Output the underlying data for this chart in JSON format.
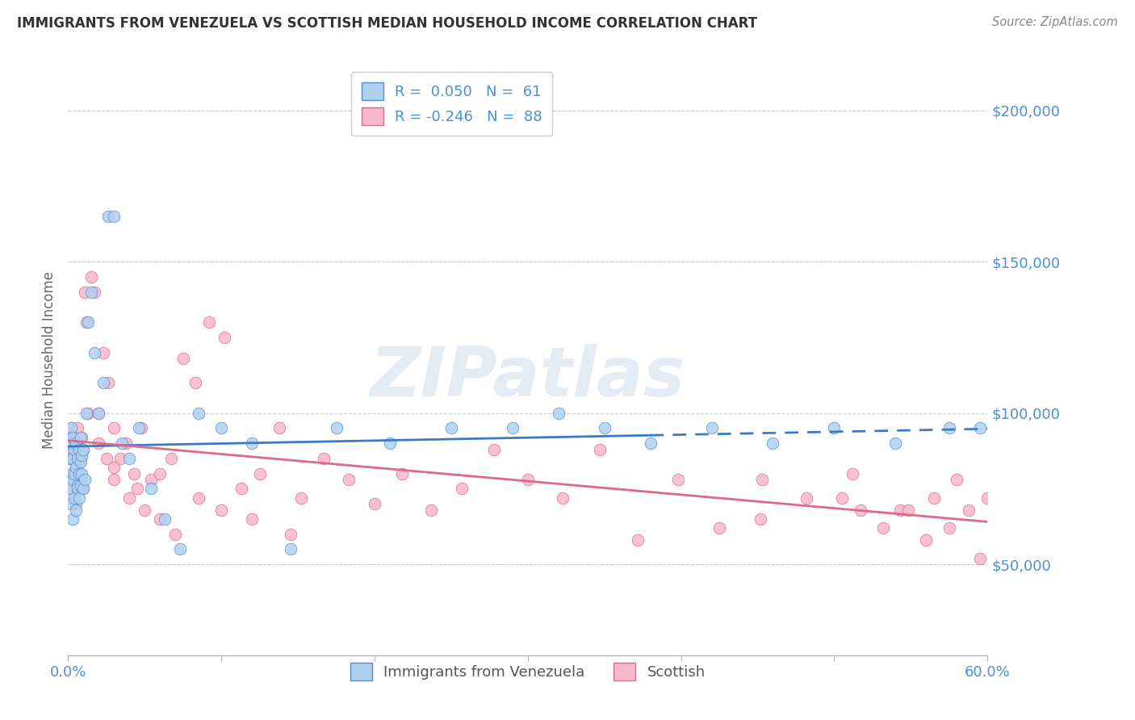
{
  "title": "IMMIGRANTS FROM VENEZUELA VS SCOTTISH MEDIAN HOUSEHOLD INCOME CORRELATION CHART",
  "source": "Source: ZipAtlas.com",
  "ylabel": "Median Household Income",
  "xlim": [
    0.0,
    0.6
  ],
  "ylim": [
    20000,
    215000
  ],
  "yticks": [
    50000,
    100000,
    150000,
    200000
  ],
  "ytick_labels": [
    "$50,000",
    "$100,000",
    "$150,000",
    "$200,000"
  ],
  "xtick_major": [
    0.0,
    0.6
  ],
  "xtick_major_labels": [
    "0.0%",
    "60.0%"
  ],
  "xtick_minor": [
    0.1,
    0.2,
    0.3,
    0.4,
    0.5
  ],
  "series1_label": "Immigrants from Venezuela",
  "series1_R": 0.05,
  "series1_N": 61,
  "series1_color": "#b0d0f0",
  "series1_edge_color": "#5090d0",
  "series1_line_color": "#3a7bc8",
  "series2_label": "Scottish",
  "series2_R": -0.246,
  "series2_N": 88,
  "series2_color": "#f8b8cc",
  "series2_edge_color": "#e06888",
  "series2_line_color": "#e06888",
  "watermark": "ZIPatlas",
  "bg_color": "#ffffff",
  "grid_color": "#cccccc",
  "title_color": "#333333",
  "ylabel_color": "#666666",
  "tick_color": "#4a90d9",
  "source_color": "#888888",
  "dot_size": 110,
  "line_dash_start": 0.38,
  "series1_x": [
    0.001,
    0.001,
    0.001,
    0.002,
    0.002,
    0.002,
    0.003,
    0.003,
    0.003,
    0.003,
    0.004,
    0.004,
    0.004,
    0.005,
    0.005,
    0.005,
    0.006,
    0.006,
    0.006,
    0.007,
    0.007,
    0.007,
    0.008,
    0.008,
    0.008,
    0.009,
    0.009,
    0.01,
    0.01,
    0.011,
    0.012,
    0.013,
    0.015,
    0.017,
    0.02,
    0.023,
    0.026,
    0.03,
    0.035,
    0.04,
    0.046,
    0.054,
    0.063,
    0.073,
    0.085,
    0.1,
    0.12,
    0.145,
    0.175,
    0.21,
    0.25,
    0.29,
    0.32,
    0.35,
    0.38,
    0.42,
    0.46,
    0.5,
    0.54,
    0.575,
    0.595
  ],
  "series1_y": [
    85000,
    90000,
    75000,
    80000,
    95000,
    70000,
    85000,
    78000,
    92000,
    65000,
    88000,
    72000,
    80000,
    90000,
    68000,
    82000,
    76000,
    85000,
    75000,
    80000,
    88000,
    72000,
    84000,
    76000,
    92000,
    80000,
    86000,
    75000,
    88000,
    78000,
    100000,
    130000,
    140000,
    120000,
    100000,
    110000,
    165000,
    165000,
    90000,
    85000,
    95000,
    75000,
    65000,
    55000,
    100000,
    95000,
    90000,
    55000,
    95000,
    90000,
    95000,
    95000,
    100000,
    95000,
    90000,
    95000,
    90000,
    95000,
    90000,
    95000,
    95000
  ],
  "series2_x": [
    0.001,
    0.001,
    0.002,
    0.002,
    0.002,
    0.003,
    0.003,
    0.004,
    0.004,
    0.005,
    0.005,
    0.005,
    0.006,
    0.006,
    0.006,
    0.007,
    0.007,
    0.008,
    0.008,
    0.009,
    0.01,
    0.01,
    0.011,
    0.012,
    0.013,
    0.015,
    0.017,
    0.02,
    0.023,
    0.026,
    0.03,
    0.034,
    0.038,
    0.043,
    0.048,
    0.054,
    0.06,
    0.067,
    0.075,
    0.083,
    0.092,
    0.102,
    0.113,
    0.125,
    0.138,
    0.152,
    0.167,
    0.183,
    0.2,
    0.218,
    0.237,
    0.257,
    0.278,
    0.3,
    0.323,
    0.347,
    0.372,
    0.398,
    0.425,
    0.453,
    0.452,
    0.482,
    0.512,
    0.543,
    0.56,
    0.575,
    0.588,
    0.595,
    0.6,
    0.58,
    0.565,
    0.548,
    0.532,
    0.517,
    0.505,
    0.02,
    0.025,
    0.03,
    0.04,
    0.05,
    0.06,
    0.07,
    0.085,
    0.1,
    0.12,
    0.145,
    0.03,
    0.045
  ],
  "series2_y": [
    90000,
    85000,
    88000,
    95000,
    75000,
    80000,
    92000,
    85000,
    78000,
    90000,
    82000,
    70000,
    88000,
    75000,
    95000,
    80000,
    86000,
    85000,
    78000,
    92000,
    88000,
    75000,
    140000,
    130000,
    100000,
    145000,
    140000,
    100000,
    120000,
    110000,
    95000,
    85000,
    90000,
    80000,
    95000,
    78000,
    80000,
    85000,
    118000,
    110000,
    130000,
    125000,
    75000,
    80000,
    95000,
    72000,
    85000,
    78000,
    70000,
    80000,
    68000,
    75000,
    88000,
    78000,
    72000,
    88000,
    58000,
    78000,
    62000,
    78000,
    65000,
    72000,
    80000,
    68000,
    58000,
    62000,
    68000,
    52000,
    72000,
    78000,
    72000,
    68000,
    62000,
    68000,
    72000,
    90000,
    85000,
    78000,
    72000,
    68000,
    65000,
    60000,
    72000,
    68000,
    65000,
    60000,
    82000,
    75000
  ]
}
